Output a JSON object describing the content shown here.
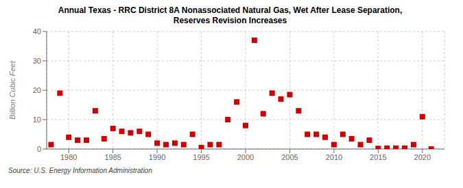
{
  "chart_data": {
    "type": "scatter",
    "title": "Annual Texas - RRC District 8A Nonassociated Natural Gas, Wet After Lease Separation,\nReserves Revision Increases",
    "ylabel": "Billion Cubic Feet",
    "annotations": [
      "Source: U.S. Energy Information Administration"
    ],
    "x": [
      1978,
      1979,
      1980,
      1981,
      1982,
      1983,
      1984,
      1985,
      1986,
      1987,
      1988,
      1989,
      1990,
      1991,
      1992,
      1993,
      1994,
      1995,
      1996,
      1997,
      1998,
      1999,
      2000,
      2001,
      2002,
      2003,
      2004,
      2005,
      2006,
      2007,
      2008,
      2009,
      2010,
      2011,
      2012,
      2013,
      2014,
      2015,
      2016,
      2017,
      2018,
      2019,
      2020,
      2021
    ],
    "values": [
      1.5,
      19.0,
      4.0,
      3.0,
      3.0,
      13.0,
      3.5,
      7.0,
      6.0,
      5.5,
      6.0,
      5.0,
      2.0,
      1.5,
      2.0,
      1.5,
      5.0,
      0.5,
      1.5,
      1.5,
      10.0,
      16.0,
      8.0,
      37.0,
      12.0,
      19.0,
      17.0,
      18.5,
      13.0,
      5.0,
      5.0,
      4.0,
      1.5,
      5.0,
      3.5,
      1.5,
      3.0,
      0.2,
      0.3,
      0.3,
      0.3,
      1.5,
      11.0,
      0.0
    ],
    "color": "#cc0000",
    "marker": "square",
    "xlim": [
      1977.5,
      2022.5
    ],
    "ylim": [
      0,
      40
    ],
    "xticks": [
      1980,
      1985,
      1990,
      1995,
      2000,
      2005,
      2010,
      2015,
      2020
    ],
    "yticks": [
      0,
      10,
      20,
      30,
      40
    ],
    "grid": true
  }
}
